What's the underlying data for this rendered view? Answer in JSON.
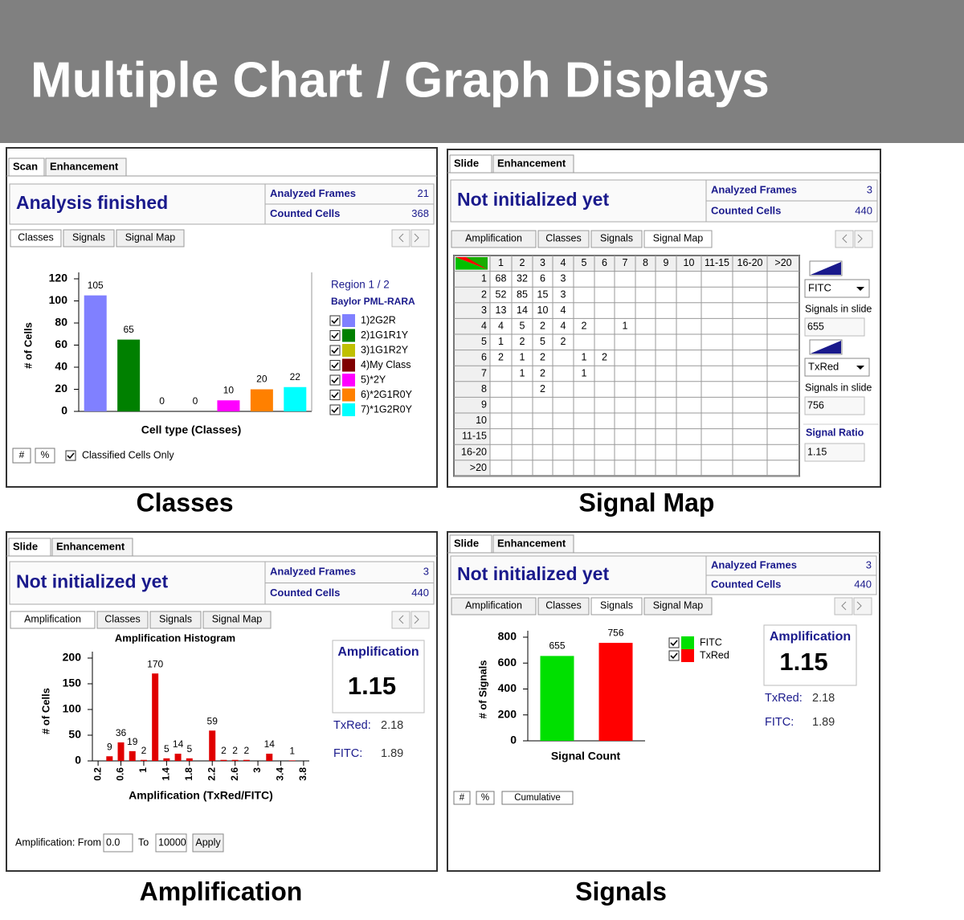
{
  "title": "Multiple Chart / Graph Displays",
  "panels": [
    {
      "caption": "Classes",
      "tabs": [
        "Scan",
        "Enhancement"
      ],
      "status": "Analysis finished",
      "stats": [
        {
          "label": "Analyzed Frames",
          "value": 21
        },
        {
          "label": "Counted Cells",
          "value": 368
        }
      ],
      "subtabs": [
        "Classes",
        "Signals",
        "Signal Map"
      ],
      "legend_title": "Region 1 / 2",
      "legend_subtitle": "Baylor PML-RARA",
      "footer": [
        "#",
        "%",
        "Classified Cells Only"
      ]
    },
    {
      "caption": "Signal Map",
      "tabs": [
        "Slide",
        "Enhancement"
      ],
      "status": "Not initialized yet",
      "stats": [
        {
          "label": "Analyzed Frames",
          "value": 3
        },
        {
          "label": "Counted Cells",
          "value": 440
        }
      ],
      "subtabs": [
        "Amplification",
        "Classes",
        "Signals",
        "Signal Map"
      ],
      "table": {
        "columns": [
          "1",
          "2",
          "3",
          "4",
          "5",
          "6",
          "7",
          "8",
          "9",
          "10",
          "11-15",
          "16-20",
          ">20"
        ],
        "rows": [
          {
            "label": "1",
            "cells": [
              68,
              32,
              6,
              3,
              null,
              null,
              null,
              null,
              null,
              null,
              null,
              null,
              null
            ]
          },
          {
            "label": "2",
            "cells": [
              52,
              85,
              15,
              3,
              null,
              null,
              null,
              null,
              null,
              null,
              null,
              null,
              null
            ]
          },
          {
            "label": "3",
            "cells": [
              13,
              14,
              10,
              4,
              null,
              null,
              null,
              null,
              null,
              null,
              null,
              null,
              null
            ]
          },
          {
            "label": "4",
            "cells": [
              4,
              5,
              2,
              4,
              2,
              null,
              1,
              null,
              null,
              null,
              null,
              null,
              null
            ]
          },
          {
            "label": "5",
            "cells": [
              1,
              2,
              5,
              2,
              null,
              null,
              null,
              null,
              null,
              null,
              null,
              null,
              null
            ]
          },
          {
            "label": "6",
            "cells": [
              2,
              1,
              2,
              null,
              1,
              2,
              null,
              null,
              null,
              null,
              null,
              null,
              null
            ]
          },
          {
            "label": "7",
            "cells": [
              null,
              1,
              2,
              null,
              1,
              null,
              null,
              null,
              null,
              null,
              null,
              null,
              null
            ]
          },
          {
            "label": "8",
            "cells": [
              null,
              null,
              2,
              null,
              null,
              null,
              null,
              null,
              null,
              null,
              null,
              null,
              null
            ]
          },
          {
            "label": "9",
            "cells": [
              null,
              null,
              null,
              null,
              null,
              null,
              null,
              null,
              null,
              null,
              null,
              null,
              null
            ]
          },
          {
            "label": "10",
            "cells": [
              null,
              null,
              null,
              null,
              null,
              null,
              null,
              null,
              null,
              null,
              null,
              null,
              null
            ]
          },
          {
            "label": "11-15",
            "cells": [
              null,
              null,
              null,
              null,
              null,
              null,
              null,
              null,
              null,
              null,
              null,
              null,
              null
            ]
          },
          {
            "label": "16-20",
            "cells": [
              null,
              null,
              null,
              null,
              null,
              null,
              null,
              null,
              null,
              null,
              null,
              null,
              null
            ]
          },
          {
            "label": ">20",
            "cells": [
              null,
              null,
              null,
              null,
              null,
              null,
              null,
              null,
              null,
              null,
              null,
              null,
              null
            ]
          }
        ]
      },
      "controls": [
        {
          "channel": "FITC",
          "label": "Signals in slide",
          "value": 655
        },
        {
          "channel": "TxRed",
          "label": "Signals in slide",
          "value": 756
        }
      ],
      "ratio": {
        "label": "Signal Ratio",
        "value": 1.15
      }
    },
    {
      "caption": "Amplification",
      "tabs": [
        "Slide",
        "Enhancement"
      ],
      "status": "Not initialized yet",
      "stats": [
        {
          "label": "Analyzed Frames",
          "value": 3
        },
        {
          "label": "Counted Cells",
          "value": 440
        }
      ],
      "subtabs": [
        "Amplification",
        "Classes",
        "Signals",
        "Signal Map"
      ],
      "summary": {
        "title": "Amplification",
        "value": 1.15,
        "rows": [
          {
            "label": "TxRed:",
            "value": 2.18
          },
          {
            "label": "FITC:",
            "value": 1.89
          }
        ]
      },
      "footer": {
        "from_label": "Amplification: From",
        "from": "0.0",
        "to_label": "To",
        "to": "10000",
        "button": "Apply"
      }
    },
    {
      "caption": "Signals",
      "tabs": [
        "Slide",
        "Enhancement"
      ],
      "status": "Not initialized yet",
      "stats": [
        {
          "label": "Analyzed Frames",
          "value": 3
        },
        {
          "label": "Counted Cells",
          "value": 440
        }
      ],
      "subtabs": [
        "Amplification",
        "Classes",
        "Signals",
        "Signal Map"
      ],
      "summary": {
        "title": "Amplification",
        "value": 1.15,
        "rows": [
          {
            "label": "TxRed:",
            "value": 2.18
          },
          {
            "label": "FITC:",
            "value": 1.89
          }
        ]
      },
      "footer": [
        "#",
        "%",
        "Cumulative"
      ]
    }
  ],
  "chart_data": [
    {
      "type": "bar",
      "ylabel": "# of Cells",
      "xlabel": "Cell type (Classes)",
      "categories": [
        null,
        null,
        null,
        null,
        null,
        null,
        null
      ],
      "values": [
        105,
        65,
        0,
        0,
        10,
        20,
        22
      ],
      "colors": [
        "#8080ff",
        "#008000",
        "#c0c000",
        "#800000",
        "#ff00ff",
        "#ff8000",
        "#00ffff"
      ],
      "legend": [
        "1)2G2R",
        "2)1G1R1Y",
        "3)1G1R2Y",
        "4)My Class",
        "5)*2Y",
        "6)*2G1R0Y",
        "7)*1G2R0Y"
      ],
      "ylim": [
        0,
        120
      ],
      "yticks": [
        0,
        20,
        40,
        60,
        80,
        100,
        120
      ]
    },
    {
      "type": "bar",
      "title": "Amplification Histogram",
      "ylabel": "# of Cells",
      "xlabel": "Amplification (TxRed/FITC)",
      "x": [
        0.4,
        0.6,
        0.8,
        1,
        1.2,
        1.4,
        1.6,
        1.8,
        2.2,
        2.4,
        2.6,
        2.8,
        3.2,
        3.6
      ],
      "values": [
        9,
        36,
        19,
        2,
        170,
        5,
        14,
        5,
        59,
        2,
        2,
        2,
        14,
        1
      ],
      "color": "#e00000",
      "xlim": [
        0.1,
        3.9
      ],
      "xticks": [
        0.2,
        0.6,
        1,
        1.4,
        1.8,
        2.2,
        2.6,
        3,
        3.4,
        3.8
      ],
      "ylim": [
        0,
        200
      ],
      "yticks": [
        0,
        50,
        100,
        150,
        200
      ]
    },
    {
      "type": "bar",
      "ylabel": "# of Signals",
      "xlabel": "Signal Count",
      "categories": [
        null,
        null
      ],
      "values": [
        655,
        756
      ],
      "colors": [
        "#00e000",
        "#ff0000"
      ],
      "legend": [
        "FITC",
        "TxRed"
      ],
      "ylim": [
        0,
        800
      ],
      "yticks": [
        0,
        200,
        400,
        600,
        800
      ]
    }
  ]
}
